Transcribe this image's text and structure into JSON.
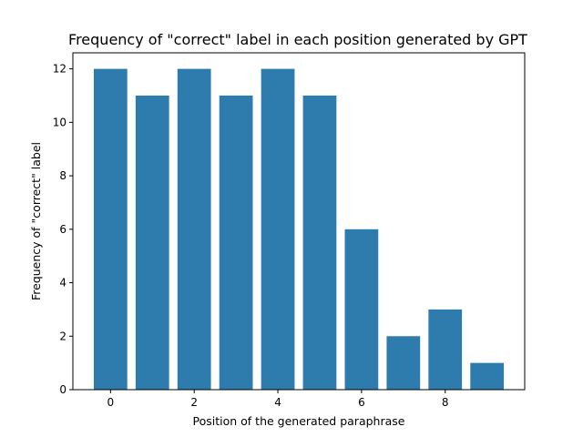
{
  "chart_data": {
    "type": "bar",
    "title": "Frequency of \"correct\" label in each position generated by GPT",
    "xlabel": "Position of the generated paraphrase",
    "ylabel": "Frequency of \"correct\" label",
    "categories": [
      0,
      1,
      2,
      3,
      4,
      5,
      6,
      7,
      8,
      9
    ],
    "values": [
      12,
      11,
      12,
      11,
      12,
      11,
      6,
      2,
      3,
      1
    ],
    "xlim": [
      -0.9,
      9.9
    ],
    "ylim": [
      0,
      12.6
    ],
    "xticks": [
      0,
      2,
      4,
      6,
      8
    ],
    "yticks": [
      0,
      2,
      4,
      6,
      8,
      10,
      12
    ],
    "grid": false,
    "bar_color": "#2e7bae"
  }
}
